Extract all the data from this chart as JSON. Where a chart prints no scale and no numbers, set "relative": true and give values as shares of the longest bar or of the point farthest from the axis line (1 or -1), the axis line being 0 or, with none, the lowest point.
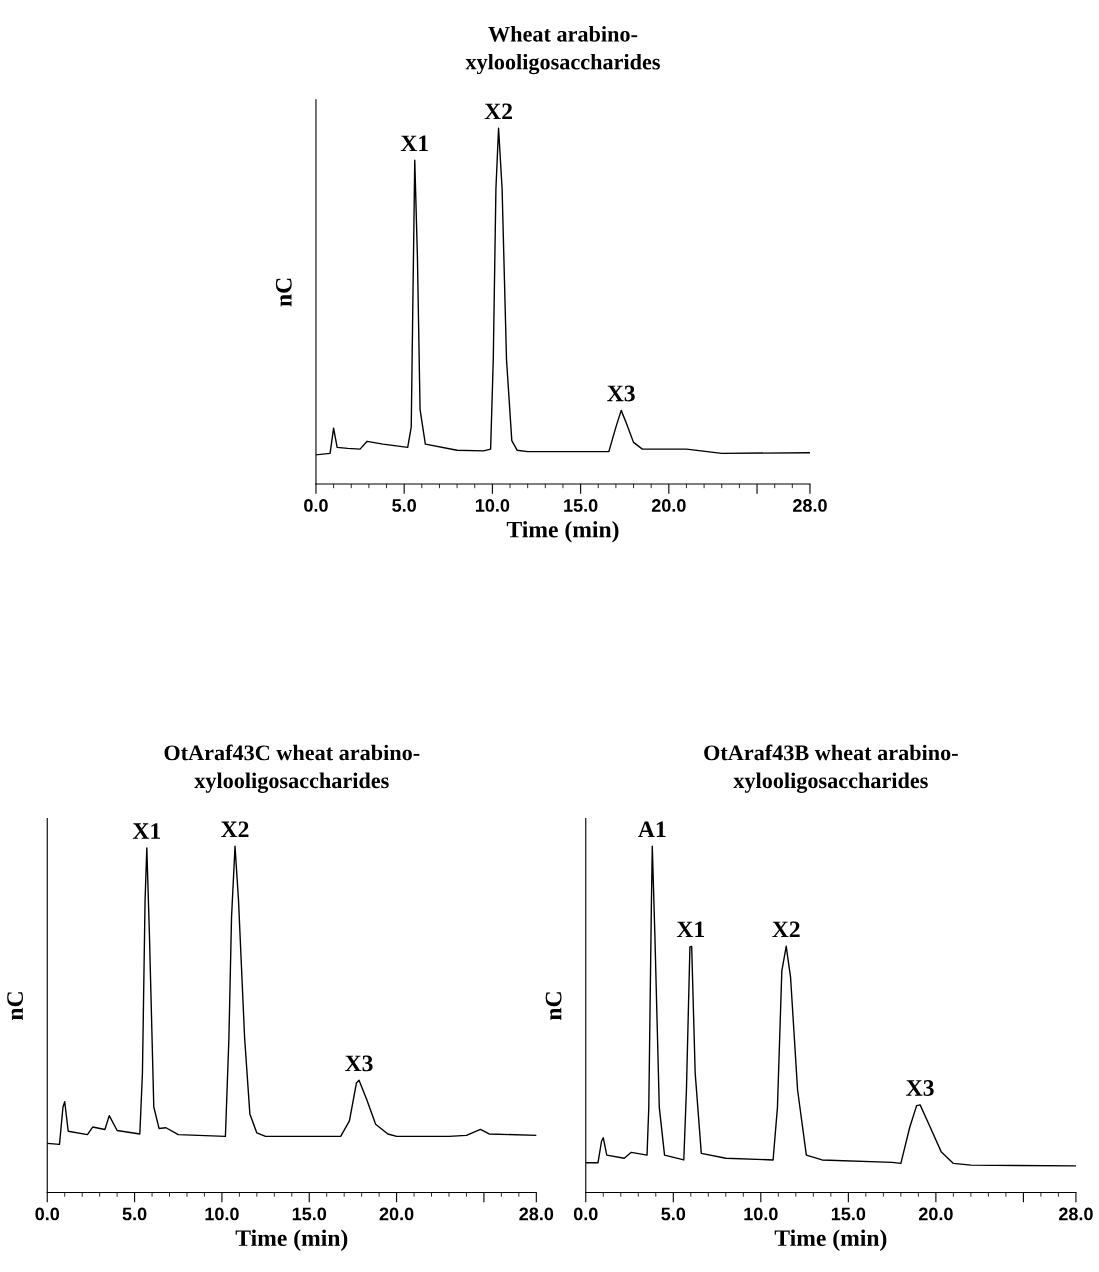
{
  "chart_data": [
    {
      "type": "line",
      "title": "Wheat arabino-\nxylooligosaccharides",
      "xlabel": "Time (min)",
      "ylabel": "nC",
      "relative": true,
      "tick_labels": "x",
      "xlim": [
        0,
        28
      ],
      "xticks": [
        {
          "value": 0,
          "label": "0.0"
        },
        {
          "value": 5,
          "label": "5.0"
        },
        {
          "value": 10,
          "label": "10.0"
        },
        {
          "value": 15,
          "label": "15.0"
        },
        {
          "value": 20,
          "label": "20.0"
        },
        {
          "value": 25,
          "label": null
        },
        {
          "value": 28,
          "label": "28.0"
        }
      ],
      "series": [
        {
          "color": "#000000",
          "x": [
            0,
            0.8,
            1.0,
            1.2,
            1.8,
            2.5,
            2.9,
            3.8,
            5.2,
            5.4,
            5.5,
            5.6,
            5.75,
            5.9,
            6.2,
            8.0,
            9.5,
            9.9,
            10.05,
            10.2,
            10.35,
            10.55,
            10.8,
            11.1,
            11.4,
            12.0,
            16.6,
            17.0,
            17.3,
            17.6,
            18.0,
            18.5,
            21.0,
            23.0,
            28.0
          ],
          "values": [
            0.082,
            0.086,
            0.157,
            0.103,
            0.1,
            0.098,
            0.12,
            0.112,
            0.103,
            0.16,
            0.54,
            0.91,
            0.64,
            0.21,
            0.112,
            0.095,
            0.093,
            0.098,
            0.35,
            0.83,
            1.0,
            0.83,
            0.35,
            0.122,
            0.095,
            0.091,
            0.091,
            0.16,
            0.207,
            0.17,
            0.117,
            0.098,
            0.098,
            0.086,
            0.088
          ]
        }
      ],
      "annotations": [
        {
          "text": "X1",
          "x": 5.6,
          "y": 0.91
        },
        {
          "text": "X2",
          "x": 10.35,
          "y": 1.0
        },
        {
          "text": "X3",
          "x": 17.3,
          "y": 0.207
        }
      ]
    },
    {
      "type": "line",
      "title": "OtAraf43C wheat arabino-\nxylooligosaccharides",
      "xlabel": "Time (min)",
      "ylabel": "nC",
      "relative": true,
      "tick_labels": "x",
      "xlim": [
        0,
        28
      ],
      "xticks": [
        {
          "value": 0,
          "label": "0.0"
        },
        {
          "value": 5,
          "label": "5.0"
        },
        {
          "value": 10,
          "label": "10.0"
        },
        {
          "value": 15,
          "label": "15.0"
        },
        {
          "value": 20,
          "label": "20.0"
        },
        {
          "value": 25,
          "label": null
        },
        {
          "value": 28,
          "label": "28.0"
        }
      ],
      "series": [
        {
          "color": "#000000",
          "x": [
            0,
            0.7,
            0.9,
            1.0,
            1.2,
            2.3,
            2.6,
            3.3,
            3.55,
            4.0,
            5.3,
            5.45,
            5.6,
            5.7,
            5.85,
            6.1,
            6.4,
            6.8,
            7.5,
            10.2,
            10.4,
            10.55,
            10.75,
            10.95,
            11.3,
            11.6,
            12.0,
            12.5,
            16.8,
            17.3,
            17.7,
            17.85,
            18.3,
            18.8,
            19.5,
            20.0,
            23.0,
            24.0,
            24.8,
            25.3,
            28.0
          ],
          "values": [
            0.142,
            0.139,
            0.247,
            0.262,
            0.177,
            0.167,
            0.189,
            0.182,
            0.222,
            0.179,
            0.169,
            0.346,
            0.844,
            0.995,
            0.744,
            0.247,
            0.185,
            0.187,
            0.167,
            0.162,
            0.446,
            0.794,
            1.0,
            0.844,
            0.446,
            0.227,
            0.172,
            0.162,
            0.162,
            0.207,
            0.316,
            0.324,
            0.267,
            0.197,
            0.169,
            0.162,
            0.162,
            0.165,
            0.182,
            0.169,
            0.165
          ]
        }
      ],
      "annotations": [
        {
          "text": "X1",
          "x": 5.7,
          "y": 0.995
        },
        {
          "text": "X2",
          "x": 10.75,
          "y": 1.0
        },
        {
          "text": "X3",
          "x": 17.85,
          "y": 0.324
        }
      ]
    },
    {
      "type": "line",
      "title": "OtAraf43B wheat arabino-\nxylooligosaccharides",
      "xlabel": "Time (min)",
      "ylabel": "nC",
      "relative": true,
      "tick_labels": "x",
      "xlim": [
        0,
        28
      ],
      "xticks": [
        {
          "value": 0,
          "label": "0.0"
        },
        {
          "value": 5,
          "label": "5.0"
        },
        {
          "value": 10,
          "label": "10.0"
        },
        {
          "value": 15,
          "label": "15.0"
        },
        {
          "value": 20,
          "label": "20.0"
        },
        {
          "value": 25,
          "label": null
        },
        {
          "value": 28,
          "label": "28.0"
        }
      ],
      "series": [
        {
          "color": "#000000",
          "x": [
            0,
            0.7,
            0.9,
            1.0,
            1.2,
            2.2,
            2.6,
            3.5,
            3.6,
            3.75,
            3.8,
            3.95,
            4.2,
            4.5,
            5.6,
            5.75,
            5.95,
            6.05,
            6.25,
            6.6,
            8.0,
            10.7,
            10.95,
            11.2,
            11.45,
            11.7,
            12.1,
            12.6,
            13.5,
            17.5,
            18.0,
            18.5,
            18.9,
            19.1,
            19.6,
            20.3,
            21.0,
            22.0,
            28.0
          ],
          "values": [
            0.086,
            0.086,
            0.148,
            0.158,
            0.108,
            0.099,
            0.116,
            0.108,
            0.246,
            0.837,
            1.0,
            0.739,
            0.246,
            0.108,
            0.094,
            0.296,
            0.709,
            0.711,
            0.345,
            0.113,
            0.099,
            0.094,
            0.246,
            0.64,
            0.711,
            0.621,
            0.296,
            0.108,
            0.094,
            0.087,
            0.084,
            0.187,
            0.251,
            0.253,
            0.197,
            0.118,
            0.084,
            0.079,
            0.077
          ]
        }
      ],
      "annotations": [
        {
          "text": "A1",
          "x": 3.8,
          "y": 1.0
        },
        {
          "text": "X1",
          "x": 6.0,
          "y": 0.711
        },
        {
          "text": "X2",
          "x": 11.45,
          "y": 0.711
        },
        {
          "text": "X3",
          "x": 19.1,
          "y": 0.253
        }
      ]
    }
  ]
}
